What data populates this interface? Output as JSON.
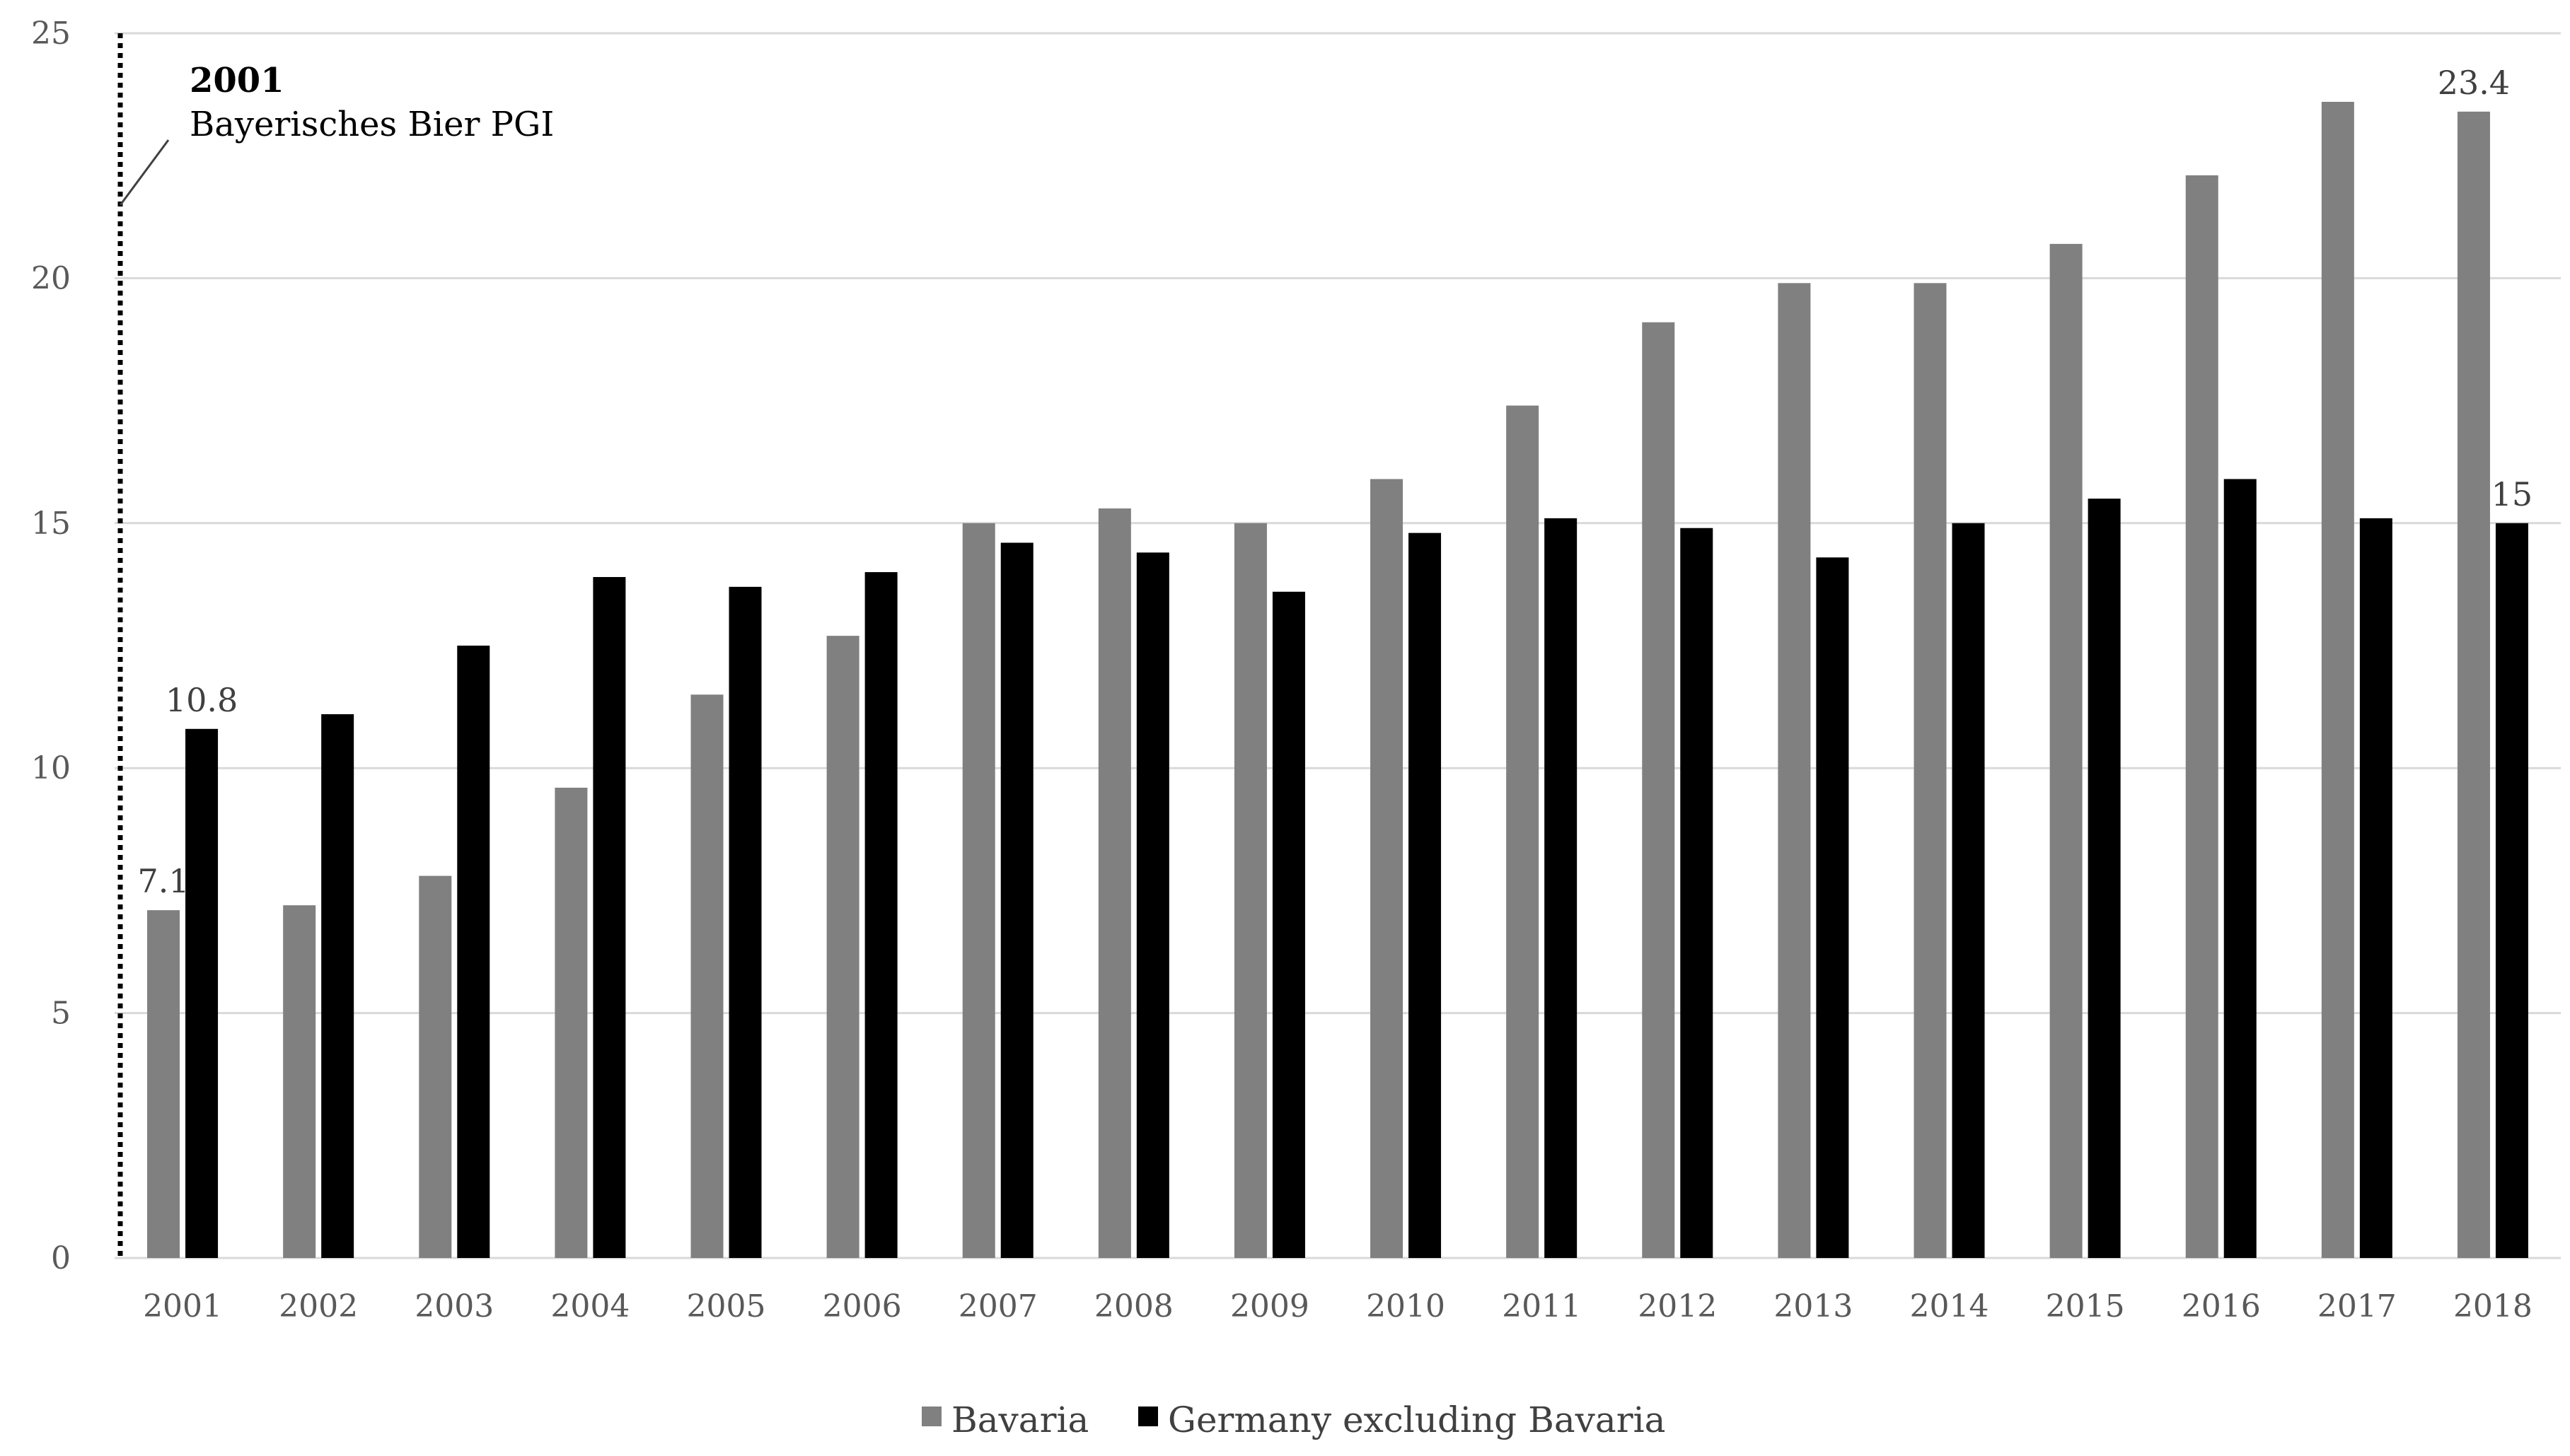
{
  "chart_data": {
    "type": "bar",
    "categories": [
      "2001",
      "2002",
      "2003",
      "2004",
      "2005",
      "2006",
      "2007",
      "2008",
      "2009",
      "2010",
      "2011",
      "2012",
      "2013",
      "2014",
      "2015",
      "2016",
      "2017",
      "2018"
    ],
    "series": [
      {
        "name": "Bavaria",
        "color": "#808080",
        "values": [
          7.1,
          7.2,
          7.8,
          9.6,
          11.5,
          12.7,
          15.0,
          15.3,
          15.0,
          15.9,
          17.4,
          19.1,
          19.9,
          19.9,
          20.7,
          22.1,
          23.6,
          23.4
        ]
      },
      {
        "name": "Germany excluding Bavaria",
        "color": "#000000",
        "values": [
          10.8,
          11.1,
          12.5,
          13.9,
          13.7,
          14.0,
          14.6,
          14.4,
          13.6,
          14.8,
          15.1,
          14.9,
          14.3,
          15.0,
          15.5,
          15.9,
          15.1,
          15.0
        ]
      }
    ],
    "ylim": [
      0,
      25
    ],
    "yticks": [
      0,
      5,
      10,
      15,
      20,
      25
    ],
    "grid": true,
    "legend": "bottom",
    "data_labels": [
      {
        "series": 0,
        "index": 0,
        "text": "7.1"
      },
      {
        "series": 1,
        "index": 0,
        "text": "10.8"
      },
      {
        "series": 0,
        "index": 17,
        "text": "23.4"
      },
      {
        "series": 1,
        "index": 17,
        "text": "15"
      }
    ],
    "annotations": [
      {
        "category": "2001",
        "title": "2001",
        "text": "Bayerisches Bier PGI",
        "style": "dotted vertical line"
      }
    ]
  }
}
